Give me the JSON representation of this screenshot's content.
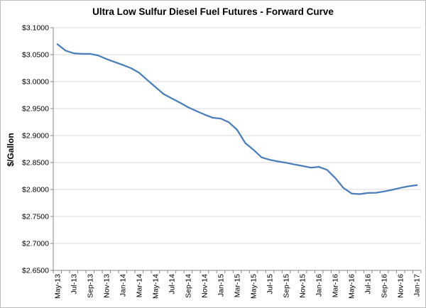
{
  "chart_data": {
    "type": "line",
    "title": "Ultra Low Sulfur Diesel Fuel Futures - Forward Curve",
    "xlabel": "",
    "ylabel": "$/Gallon",
    "ylim": [
      2.65,
      3.1
    ],
    "y_ticks": [
      "$2.6500",
      "$2.7000",
      "$2.7500",
      "$2.8000",
      "$2.8500",
      "$2.9000",
      "$2.9500",
      "$3.0000",
      "$3.0500",
      "$3.1000"
    ],
    "x_tick_labels": [
      "May-13",
      "Jul-13",
      "Sep-13",
      "Nov-13",
      "Jan-14",
      "Mar-14",
      "May-14",
      "Jul-14",
      "Sep-14",
      "Nov-14",
      "Jan-15",
      "Mar-15",
      "May-15",
      "Jul-15",
      "Sep-15",
      "Nov-15",
      "Jan-16",
      "Mar-16",
      "May-16",
      "Jul-16",
      "Sep-16",
      "Nov-16",
      "Jan-17"
    ],
    "grid": true,
    "legend": false,
    "colors": {
      "line": "#4a7ebb",
      "grid": "#d9d9d9",
      "axis": "#868686"
    },
    "series": [
      {
        "x": [
          "May-13",
          "Jun-13",
          "Jul-13",
          "Aug-13",
          "Sep-13",
          "Oct-13",
          "Nov-13",
          "Dec-13",
          "Jan-14",
          "Feb-14",
          "Mar-14",
          "Apr-14",
          "May-14",
          "Jun-14",
          "Jul-14",
          "Aug-14",
          "Sep-14",
          "Oct-14",
          "Nov-14",
          "Dec-14",
          "Jan-15",
          "Feb-15",
          "Mar-15",
          "Apr-15",
          "May-15",
          "Jun-15",
          "Jul-15",
          "Aug-15",
          "Sep-15",
          "Oct-15",
          "Nov-15",
          "Dec-15",
          "Jan-16",
          "Feb-16",
          "Mar-16",
          "Apr-16",
          "May-16",
          "Jun-16",
          "Jul-16",
          "Aug-16",
          "Sep-16",
          "Oct-16",
          "Nov-16",
          "Dec-16",
          "Jan-17"
        ],
        "values": [
          3.0695,
          3.0575,
          3.0525,
          3.0515,
          3.0515,
          3.0485,
          3.042,
          3.0365,
          3.031,
          3.025,
          3.0165,
          3.003,
          2.99,
          2.977,
          2.969,
          2.961,
          2.9525,
          2.9455,
          2.939,
          2.933,
          2.9315,
          2.9245,
          2.9105,
          2.886,
          2.8735,
          2.8595,
          2.855,
          2.852,
          2.8495,
          2.8465,
          2.8435,
          2.8405,
          2.842,
          2.8365,
          2.8215,
          2.803,
          2.7925,
          2.7915,
          2.7935,
          2.794,
          2.7965,
          2.7995,
          2.803,
          2.806,
          2.808
        ]
      }
    ]
  }
}
